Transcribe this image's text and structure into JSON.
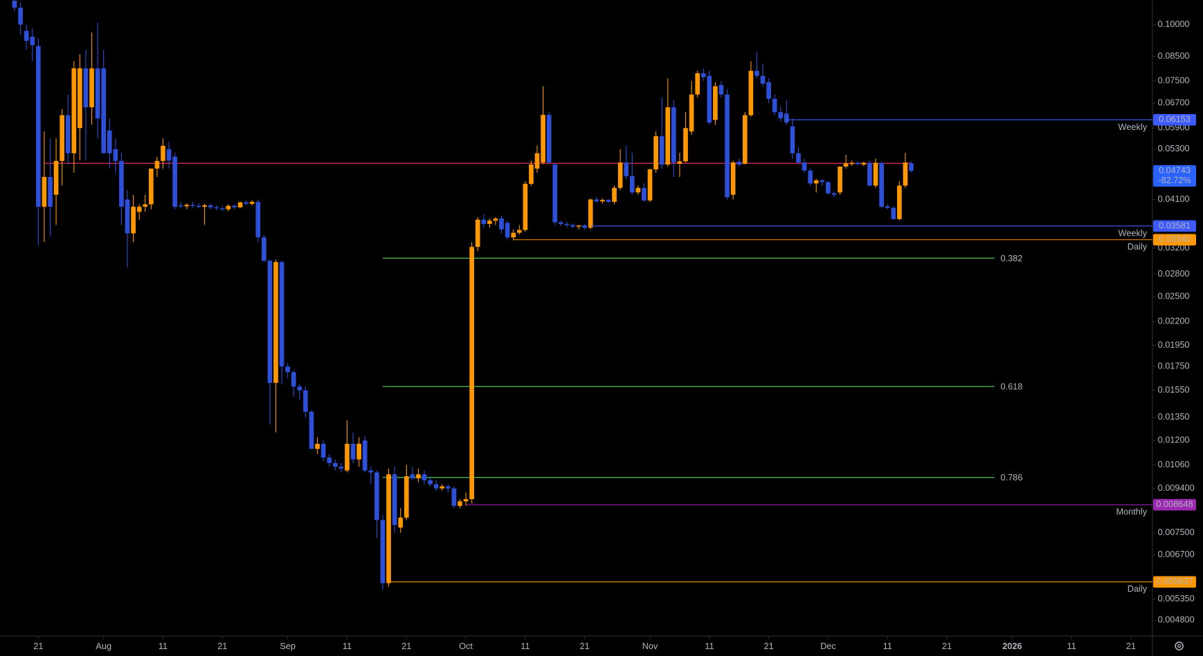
{
  "chart_data": {
    "type": "candlestick",
    "log_scale": true,
    "up_color": "#ff9800",
    "down_color": "#2e4fd8",
    "open": [
      0.113,
      0.109,
      0.0969,
      0.094,
      0.0896,
      0.0395,
      0.046,
      0.042,
      0.0499,
      0.063,
      0.0519,
      0.059,
      0.08,
      0.0656,
      0.08,
      0.08,
      0.0583,
      0.053,
      0.0499,
      0.041,
      0.0345,
      0.0385,
      0.0395,
      0.04,
      0.048,
      0.0499,
      0.053,
      0.051,
      0.0398,
      0.0396,
      0.0399,
      0.0397,
      0.0395,
      0.0398,
      0.0394,
      0.0392,
      0.039,
      0.0397,
      0.0394,
      0.0404,
      0.0401,
      0.0405,
      0.0338,
      0.03,
      0.0161,
      0.0298,
      0.0175,
      0.017,
      0.0158,
      0.0155,
      0.0139,
      0.0115,
      0.0118,
      0.011,
      0.0107,
      0.0105,
      0.0103,
      0.0118,
      0.0109,
      0.012,
      0.0103,
      0.0102,
      0.008,
      0.0058,
      0.0101,
      0.0077,
      0.0081,
      0.0101,
      0.0099,
      0.0101,
      0.0098,
      0.0096,
      0.0094,
      0.0095,
      0.0094,
      0.0086,
      0.0088,
      0.0089,
      0.0322,
      0.037,
      0.0362,
      0.0368,
      0.0372,
      0.0364,
      0.0338,
      0.0346,
      0.0351,
      0.0444,
      0.048,
      0.0495,
      0.0631,
      0.049,
      0.0365,
      0.0362,
      0.036,
      0.0357,
      0.0359,
      0.0355,
      0.041,
      0.0406,
      0.0409,
      0.0405,
      0.0435,
      0.0495,
      0.0462,
      0.0425,
      0.0435,
      0.0408,
      0.0478,
      0.0566,
      0.049,
      0.0656,
      0.0492,
      0.0498,
      0.058,
      0.07,
      0.078,
      0.077,
      0.0615,
      0.0735,
      0.07,
      0.042,
      0.0497,
      0.0492,
      0.063,
      0.079,
      0.077,
      0.0745,
      0.0685,
      0.064,
      0.0635,
      0.0595,
      0.0519,
      0.0495,
      0.0475,
      0.0445,
      0.0452,
      0.0448,
      0.0423,
      0.0425,
      0.0485,
      0.0491,
      0.0494,
      0.049,
      0.0494,
      0.044,
      0.0494,
      0.0396,
      0.0393,
      0.0371,
      0.044,
      0.0493
    ],
    "high": [
      0.113,
      0.112,
      0.1,
      0.098,
      0.0932,
      0.058,
      0.056,
      0.056,
      0.065,
      0.07,
      0.083,
      0.086,
      0.088,
      0.096,
      0.101,
      0.088,
      0.062,
      0.056,
      0.052,
      0.043,
      0.042,
      0.04,
      0.042,
      0.048,
      0.051,
      0.056,
      0.055,
      0.052,
      0.0405,
      0.0402,
      0.0405,
      0.0402,
      0.0401,
      0.0402,
      0.0398,
      0.0396,
      0.04,
      0.04,
      0.0406,
      0.0408,
      0.0408,
      0.041,
      0.0342,
      0.0302,
      0.0302,
      0.03,
      0.0178,
      0.0172,
      0.016,
      0.0158,
      0.014,
      0.0122,
      0.012,
      0.0112,
      0.0109,
      0.0107,
      0.0133,
      0.0125,
      0.0122,
      0.0123,
      0.0105,
      0.0103,
      0.0082,
      0.0104,
      0.0105,
      0.0085,
      0.0106,
      0.0105,
      0.0104,
      0.0103,
      0.01,
      0.0098,
      0.0096,
      0.0096,
      0.0095,
      0.0089,
      0.0092,
      0.033,
      0.0375,
      0.038,
      0.0372,
      0.0375,
      0.0378,
      0.0368,
      0.0352,
      0.036,
      0.045,
      0.05,
      0.054,
      0.073,
      0.064,
      0.0495,
      0.0368,
      0.0366,
      0.0363,
      0.036,
      0.0362,
      0.0412,
      0.0415,
      0.0412,
      0.0411,
      0.044,
      0.053,
      0.054,
      0.052,
      0.044,
      0.0445,
      0.048,
      0.058,
      0.069,
      0.076,
      0.068,
      0.052,
      0.064,
      0.075,
      0.079,
      0.08,
      0.079,
      0.0745,
      0.075,
      0.072,
      0.05,
      0.0505,
      0.064,
      0.083,
      0.087,
      0.082,
      0.076,
      0.07,
      0.066,
      0.068,
      0.062,
      0.0535,
      0.0505,
      0.048,
      0.0455,
      0.0455,
      0.045,
      0.0428,
      0.0485,
      0.0515,
      0.05,
      0.0498,
      0.0497,
      0.05,
      0.0505,
      0.0497,
      0.04,
      0.0396,
      0.045,
      0.052,
      0.0498
    ],
    "low": [
      0.107,
      0.095,
      0.088,
      0.083,
      0.0325,
      0.033,
      0.034,
      0.036,
      0.044,
      0.049,
      0.047,
      0.05,
      0.05,
      0.06,
      0.056,
      0.0519,
      0.048,
      0.047,
      0.036,
      0.029,
      0.033,
      0.037,
      0.0385,
      0.039,
      0.046,
      0.048,
      0.048,
      0.039,
      0.0392,
      0.039,
      0.0393,
      0.0392,
      0.036,
      0.039,
      0.0388,
      0.0386,
      0.0386,
      0.039,
      0.0392,
      0.0398,
      0.0398,
      0.033,
      0.0298,
      0.013,
      0.0125,
      0.016,
      0.0165,
      0.015,
      0.0148,
      0.0135,
      0.0115,
      0.0112,
      0.0108,
      0.0105,
      0.0103,
      0.0102,
      0.0102,
      0.0107,
      0.0105,
      0.0102,
      0.0096,
      0.0073,
      0.0056,
      0.0057,
      0.0075,
      0.0075,
      0.008,
      0.0098,
      0.0097,
      0.0096,
      0.0095,
      0.0093,
      0.0093,
      0.0092,
      0.0085,
      0.0085,
      0.0086,
      0.0087,
      0.0315,
      0.0355,
      0.0355,
      0.036,
      0.0345,
      0.0335,
      0.0333,
      0.0343,
      0.0348,
      0.044,
      0.047,
      0.049,
      0.049,
      0.036,
      0.0358,
      0.0356,
      0.0354,
      0.0352,
      0.0352,
      0.0352,
      0.0404,
      0.0402,
      0.0402,
      0.04,
      0.043,
      0.0455,
      0.042,
      0.042,
      0.0405,
      0.0405,
      0.047,
      0.048,
      0.0485,
      0.046,
      0.046,
      0.0495,
      0.057,
      0.069,
      0.075,
      0.06,
      0.06,
      0.069,
      0.041,
      0.041,
      0.0485,
      0.049,
      0.0625,
      0.076,
      0.073,
      0.067,
      0.063,
      0.061,
      0.06,
      0.0505,
      0.049,
      0.047,
      0.044,
      0.0425,
      0.044,
      0.042,
      0.0415,
      0.042,
      0.048,
      0.0487,
      0.0488,
      0.0486,
      0.0438,
      0.0435,
      0.0393,
      0.039,
      0.037,
      0.0369,
      0.0435,
      0.047
    ],
    "close": [
      0.109,
      0.1,
      0.092,
      0.09,
      0.0395,
      0.046,
      0.0395,
      0.0499,
      0.063,
      0.0519,
      0.08,
      0.08,
      0.0656,
      0.08,
      0.062,
      0.0519,
      0.0519,
      0.0499,
      0.0395,
      0.0345,
      0.0395,
      0.0395,
      0.04,
      0.048,
      0.0499,
      0.0539,
      0.05,
      0.0395,
      0.0396,
      0.0399,
      0.0397,
      0.0395,
      0.0398,
      0.0394,
      0.0392,
      0.039,
      0.0397,
      0.0394,
      0.0404,
      0.0401,
      0.0405,
      0.0338,
      0.03,
      0.0161,
      0.0298,
      0.0175,
      0.017,
      0.0158,
      0.0155,
      0.0139,
      0.0115,
      0.0118,
      0.011,
      0.0107,
      0.0105,
      0.0104,
      0.0118,
      0.0109,
      0.0118,
      0.0103,
      0.0102,
      0.008,
      0.0058,
      0.0101,
      0.0078,
      0.0081,
      0.01,
      0.0099,
      0.0101,
      0.0098,
      0.0096,
      0.0094,
      0.0095,
      0.0094,
      0.0086,
      0.0088,
      0.0089,
      0.0322,
      0.037,
      0.0362,
      0.0368,
      0.0372,
      0.0352,
      0.0338,
      0.0346,
      0.0351,
      0.0444,
      0.049,
      0.0519,
      0.0631,
      0.0495,
      0.0365,
      0.0362,
      0.036,
      0.0357,
      0.0359,
      0.0355,
      0.041,
      0.0406,
      0.0409,
      0.0405,
      0.0435,
      0.0495,
      0.0462,
      0.0425,
      0.0435,
      0.0408,
      0.0478,
      0.0566,
      0.049,
      0.0656,
      0.0495,
      0.0498,
      0.059,
      0.07,
      0.078,
      0.0765,
      0.0607,
      0.073,
      0.07,
      0.0415,
      0.0495,
      0.049,
      0.063,
      0.079,
      0.077,
      0.074,
      0.0685,
      0.064,
      0.062,
      0.0607,
      0.0519,
      0.0495,
      0.0475,
      0.0445,
      0.0452,
      0.0448,
      0.0423,
      0.042,
      0.0485,
      0.0493,
      0.0494,
      0.0491,
      0.0494,
      0.044,
      0.0494,
      0.0395,
      0.0393,
      0.0371,
      0.044,
      0.0495,
      0.04743
    ],
    "xlim": [
      -2.45,
      191.6
    ],
    "xticks": [
      {
        "value": 4,
        "label": "21"
      },
      {
        "value": 15,
        "label": "Aug"
      },
      {
        "value": 25,
        "label": "11"
      },
      {
        "value": 35,
        "label": "21"
      },
      {
        "value": 46,
        "label": "Sep"
      },
      {
        "value": 56,
        "label": "11"
      },
      {
        "value": 66,
        "label": "21"
      },
      {
        "value": 76,
        "label": "Oct"
      },
      {
        "value": 86,
        "label": "11"
      },
      {
        "value": 96,
        "label": "21"
      },
      {
        "value": 107,
        "label": "Nov"
      },
      {
        "value": 117,
        "label": "11"
      },
      {
        "value": 127,
        "label": "21"
      },
      {
        "value": 137,
        "label": "Dec"
      },
      {
        "value": 147,
        "label": "11"
      },
      {
        "value": 157,
        "label": "21"
      },
      {
        "value": 168,
        "label": "2026"
      },
      {
        "value": 178,
        "label": "11"
      },
      {
        "value": 188,
        "label": "21"
      }
    ],
    "ylim": [
      0.00443,
      0.1133
    ],
    "yticks": [
      {
        "value": 0.1,
        "label": "0.10000"
      },
      {
        "value": 0.085,
        "label": "0.08500"
      },
      {
        "value": 0.075,
        "label": "0.07500"
      },
      {
        "value": 0.067,
        "label": "0.06700"
      },
      {
        "value": 0.059,
        "label": "0.05900"
      },
      {
        "value": 0.053,
        "label": "0.05300"
      },
      {
        "value": 0.041,
        "label": "0.04100"
      },
      {
        "value": 0.032,
        "label": "0.03200"
      },
      {
        "value": 0.028,
        "label": "0.02800"
      },
      {
        "value": 0.025,
        "label": "0.02500"
      },
      {
        "value": 0.022,
        "label": "0.02200"
      },
      {
        "value": 0.0195,
        "label": "0.01950"
      },
      {
        "value": 0.0175,
        "label": "0.01750"
      },
      {
        "value": 0.0155,
        "label": "0.01550"
      },
      {
        "value": 0.0135,
        "label": "0.01350"
      },
      {
        "value": 0.012,
        "label": "0.01200"
      },
      {
        "value": 0.0106,
        "label": "0.01060"
      },
      {
        "value": 0.0094,
        "label": "0.009400"
      },
      {
        "value": 0.0075,
        "label": "0.007500"
      },
      {
        "value": 0.0067,
        "label": "0.006700"
      },
      {
        "value": 0.00535,
        "label": "0.005350"
      },
      {
        "value": 0.0048,
        "label": "0.004800"
      }
    ],
    "levels": [
      {
        "name": "Weekly",
        "value": 0.06153,
        "color": "#3d5afe",
        "from": 130
      },
      {
        "name": "Weekly",
        "value": 0.03581,
        "color": "#3d5afe",
        "from": 97
      },
      {
        "name": "Daily",
        "value": 0.0334,
        "value_label": "0.03340",
        "color": "#ff9800",
        "from": 84
      },
      {
        "name": "Monthly",
        "value": 0.008648,
        "color": "#9c27b0",
        "from": 76
      },
      {
        "name": "Daily",
        "value": 0.005837,
        "color": "#ff9800",
        "from": 63
      }
    ],
    "fib_levels": [
      {
        "label": "0.382",
        "value": 0.0304,
        "color": "#4caf50",
        "from": 62,
        "to": 165
      },
      {
        "label": "0.618",
        "value": 0.0158,
        "color": "#4caf50",
        "from": 62,
        "to": 165
      },
      {
        "label": "0.786",
        "value": 0.00994,
        "color": "#4caf50",
        "from": 62,
        "to": 165
      }
    ],
    "price_line": {
      "value": 0.0493,
      "color": "#e0305a",
      "from": 5,
      "to": 151
    },
    "last_price": {
      "value": 0.04743,
      "change": -82.72,
      "change_label": "-82.72%",
      "color": "#2962ff"
    }
  }
}
